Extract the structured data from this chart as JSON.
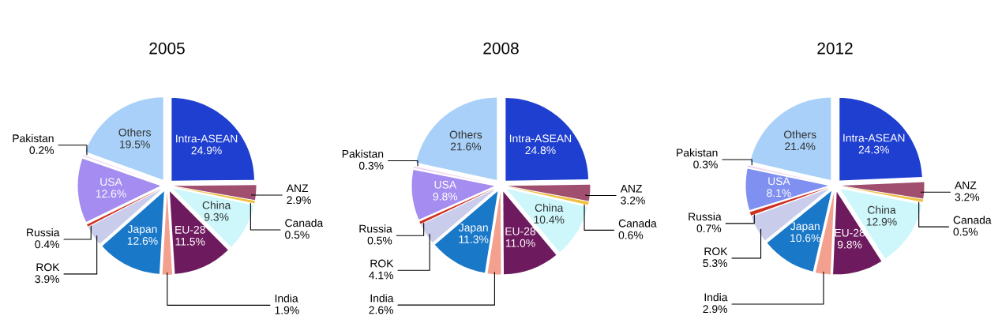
{
  "chart_data": [
    {
      "type": "pie",
      "title": "2005",
      "categories": [
        "Intra-ASEAN",
        "ANZ",
        "Canada",
        "China",
        "EU-28",
        "India",
        "Japan",
        "ROK",
        "Russia",
        "USA",
        "Pakistan",
        "Others"
      ],
      "values": [
        24.9,
        2.9,
        0.5,
        9.3,
        11.5,
        1.9,
        12.6,
        3.9,
        0.4,
        12.6,
        0.2,
        19.5
      ],
      "value_labels": [
        "24.9%",
        "2.9%",
        "0.5%",
        "9.3%",
        "11.5%",
        "1.9%",
        "12.6%",
        "3.9%",
        "0.4%",
        "12.6%",
        "0.2%",
        "19.5%"
      ],
      "colors": [
        "#1f3fd0",
        "#a04f6e",
        "#f0c040",
        "#cdf7fb",
        "#6e1a5e",
        "#f3a08f",
        "#1a78c8",
        "#c9cceb",
        "#d03020",
        "#a48cf0",
        "#f2d2f2",
        "#a8d0f8"
      ]
    },
    {
      "type": "pie",
      "title": "2008",
      "categories": [
        "Intra-ASEAN",
        "ANZ",
        "Canada",
        "China",
        "EU-28",
        "India",
        "Japan",
        "ROK",
        "Russia",
        "USA",
        "Pakistan",
        "Others"
      ],
      "values": [
        24.8,
        3.2,
        0.6,
        10.4,
        11.0,
        2.6,
        11.3,
        4.1,
        0.5,
        9.8,
        0.3,
        21.6
      ],
      "value_labels": [
        "24.8%",
        "3.2%",
        "0.6%",
        "10.4%",
        "11.0%",
        "2.6%",
        "11.3%",
        "4.1%",
        "0.5%",
        "9.8%",
        "0.3%",
        "21.6%"
      ],
      "colors": [
        "#1f3fd0",
        "#a04f6e",
        "#f0c040",
        "#cdf7fb",
        "#6e1a5e",
        "#f3a08f",
        "#1a78c8",
        "#c9cceb",
        "#d03020",
        "#a48cf0",
        "#f2d2f2",
        "#a8d0f8"
      ]
    },
    {
      "type": "pie",
      "title": "2012",
      "categories": [
        "Intra-ASEAN",
        "ANZ",
        "Canada",
        "China",
        "EU-28",
        "India",
        "Japan",
        "ROK",
        "Russia",
        "USA",
        "Pakistan",
        "Others"
      ],
      "values": [
        24.3,
        3.2,
        0.5,
        12.9,
        9.8,
        2.9,
        10.6,
        5.3,
        0.7,
        8.1,
        0.3,
        21.4
      ],
      "value_labels": [
        "24.3%",
        "3.2%",
        "0.5%",
        "12.9%",
        "9.8%",
        "2.9%",
        "10.6%",
        "5.3%",
        "0.7%",
        "8.1%",
        "0.3%",
        "21.4%"
      ],
      "colors": [
        "#1f3fd0",
        "#a04f6e",
        "#f0c040",
        "#cdf7fb",
        "#6e1a5e",
        "#f3a08f",
        "#1a78c8",
        "#c9cceb",
        "#d03020",
        "#8090f0",
        "#f2d2f2",
        "#a8d0f8"
      ]
    }
  ]
}
